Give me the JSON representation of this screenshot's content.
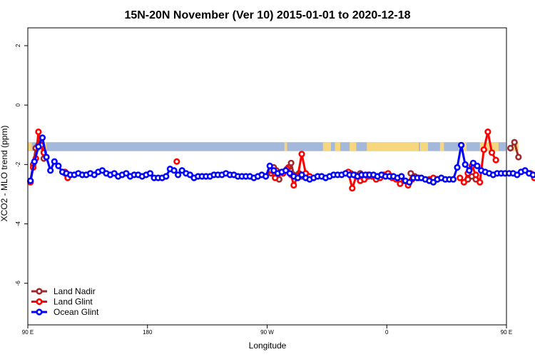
{
  "chart_data": {
    "type": "line",
    "title": "15N-20N November (Ver 10)   2015-01-01 to 2020-12-18",
    "xlabel": "Longitude",
    "ylabel": "XCO2 - MLO trend (ppm)",
    "xlim": [
      90,
      450
    ],
    "ylim": [
      -7.4,
      2.6
    ],
    "x_ticks": [
      {
        "value": 90,
        "label": "90 E"
      },
      {
        "value": 180,
        "label": "180"
      },
      {
        "value": 270,
        "label": "90 W"
      },
      {
        "value": 360,
        "label": "0"
      },
      {
        "value": 450,
        "label": "90 E"
      },
      {
        "value": 540,
        "label": "180"
      }
    ],
    "y_ticks": [
      {
        "value": 2,
        "label": "2"
      },
      {
        "value": 0,
        "label": "0"
      },
      {
        "value": -2,
        "label": "-2"
      },
      {
        "value": -4,
        "label": "-4"
      },
      {
        "value": -6,
        "label": "-6"
      }
    ],
    "legend_position": "bottom-left",
    "map_band": {
      "ymin": -1.55,
      "ymax": -1.25,
      "ocean_color": "#a4b8dc",
      "land_color": "#f7d77e"
    },
    "series": [
      {
        "name": "Land Nadir",
        "color": "#a0282d",
        "segments": [
          [
            [
              92,
              -2.55
            ],
            [
              94,
              -2.0
            ],
            [
              96,
              -1.45
            ],
            [
              98,
              -1.35
            ],
            [
              100,
              -1.25
            ],
            [
              102,
              -1.8
            ]
          ],
          [
            [
              118,
              -2.3
            ],
            [
              120,
              -2.4
            ]
          ],
          [
            [
              273,
              -2.3
            ],
            [
              275,
              -2.1
            ],
            [
              277,
              -2.2
            ],
            [
              279,
              -2.5
            ]
          ],
          [
            [
              286,
              -2.1
            ],
            [
              288,
              -1.95
            ],
            [
              290,
              -2.35
            ],
            [
              292,
              -2.4
            ],
            [
              294,
              -2.3
            ],
            [
              296,
              -2.4
            ]
          ],
          [
            [
              333,
              -2.3
            ],
            [
              336,
              -2.35
            ]
          ],
          [
            [
              340,
              -2.3
            ],
            [
              343,
              -2.4
            ],
            [
              346,
              -2.4
            ]
          ],
          [
            [
              361,
              -2.35
            ],
            [
              364,
              -2.4
            ]
          ],
          [
            [
              378,
              -2.3
            ],
            [
              381,
              -2.4
            ],
            [
              384,
              -2.45
            ]
          ],
          [
            [
              392,
              -2.5
            ],
            [
              395,
              -2.5
            ]
          ],
          [
            [
              421,
              -2.5
            ],
            [
              424,
              -2.4
            ],
            [
              427,
              -2.5
            ]
          ],
          [
            [
              453,
              -1.45
            ],
            [
              456,
              -1.25
            ],
            [
              459,
              -1.75
            ]
          ],
          [
            [
              468,
              -2.3
            ],
            [
              471,
              -2.4
            ]
          ]
        ]
      },
      {
        "name": "Land Glint",
        "color": "#ff0000",
        "segments": [
          [
            [
              92,
              -2.6
            ],
            [
              94,
              -2.1
            ],
            [
              96,
              -1.8
            ],
            [
              98,
              -0.9
            ],
            [
              100,
              -1.35
            ],
            [
              102,
              -1.6
            ]
          ],
          [
            [
              118,
              -2.25
            ],
            [
              120,
              -2.45
            ]
          ],
          [
            [
              202,
              -1.9
            ]
          ],
          [
            [
              273,
              -2.2
            ],
            [
              276,
              -2.45
            ],
            [
              279,
              -2.3
            ],
            [
              282,
              -2.3
            ],
            [
              285,
              -2.15
            ],
            [
              288,
              -2.35
            ],
            [
              290,
              -2.7
            ],
            [
              293,
              -2.4
            ],
            [
              296,
              -1.65
            ],
            [
              299,
              -2.3
            ],
            [
              302,
              -2.4
            ]
          ],
          [
            [
              331,
              -2.25
            ],
            [
              334,
              -2.8
            ],
            [
              337,
              -2.4
            ],
            [
              340,
              -2.55
            ],
            [
              343,
              -2.5
            ],
            [
              346,
              -2.35
            ],
            [
              349,
              -2.4
            ],
            [
              352,
              -2.5
            ],
            [
              355,
              -2.45
            ],
            [
              358,
              -2.35
            ],
            [
              361,
              -2.3
            ],
            [
              364,
              -2.45
            ],
            [
              367,
              -2.5
            ],
            [
              370,
              -2.65
            ],
            [
              373,
              -2.55
            ],
            [
              376,
              -2.7
            ],
            [
              379,
              -2.5
            ]
          ],
          [
            [
              392,
              -2.5
            ],
            [
              395,
              -2.45
            ],
            [
              398,
              -2.5
            ]
          ],
          [
            [
              415,
              -2.45
            ],
            [
              418,
              -2.6
            ],
            [
              421,
              -2.3
            ],
            [
              424,
              -2.05
            ],
            [
              427,
              -2.35
            ],
            [
              430,
              -2.6
            ],
            [
              433,
              -1.5
            ],
            [
              436,
              -0.9
            ],
            [
              439,
              -1.6
            ],
            [
              442,
              -1.85
            ]
          ],
          [
            [
              468,
              -2.3
            ],
            [
              471,
              -2.45
            ]
          ]
        ]
      },
      {
        "name": "Ocean Glint",
        "color": "#0000ff",
        "segments": [
          [
            [
              92,
              -2.55
            ],
            [
              95,
              -1.9
            ],
            [
              98,
              -1.4
            ],
            [
              101,
              -1.1
            ],
            [
              104,
              -1.75
            ],
            [
              107,
              -2.2
            ],
            [
              110,
              -1.9
            ],
            [
              113,
              -2.05
            ],
            [
              116,
              -2.25
            ],
            [
              119,
              -2.3
            ],
            [
              122,
              -2.35
            ],
            [
              125,
              -2.35
            ],
            [
              128,
              -2.3
            ],
            [
              131,
              -2.35
            ],
            [
              134,
              -2.35
            ],
            [
              137,
              -2.3
            ],
            [
              140,
              -2.35
            ],
            [
              143,
              -2.25
            ],
            [
              146,
              -2.2
            ],
            [
              149,
              -2.3
            ],
            [
              152,
              -2.35
            ],
            [
              155,
              -2.3
            ],
            [
              158,
              -2.4
            ],
            [
              161,
              -2.35
            ],
            [
              164,
              -2.3
            ],
            [
              167,
              -2.4
            ],
            [
              170,
              -2.35
            ],
            [
              173,
              -2.35
            ],
            [
              176,
              -2.4
            ],
            [
              179,
              -2.35
            ],
            [
              182,
              -2.3
            ],
            [
              185,
              -2.45
            ],
            [
              188,
              -2.45
            ],
            [
              191,
              -2.45
            ],
            [
              194,
              -2.4
            ],
            [
              197,
              -2.15
            ],
            [
              200,
              -2.2
            ],
            [
              203,
              -2.35
            ],
            [
              206,
              -2.2
            ],
            [
              209,
              -2.3
            ],
            [
              212,
              -2.35
            ],
            [
              215,
              -2.45
            ],
            [
              218,
              -2.4
            ],
            [
              221,
              -2.4
            ],
            [
              224,
              -2.4
            ],
            [
              227,
              -2.4
            ],
            [
              230,
              -2.35
            ],
            [
              233,
              -2.35
            ],
            [
              236,
              -2.35
            ],
            [
              239,
              -2.3
            ],
            [
              242,
              -2.35
            ],
            [
              245,
              -2.35
            ],
            [
              248,
              -2.4
            ],
            [
              251,
              -2.4
            ],
            [
              254,
              -2.4
            ],
            [
              257,
              -2.4
            ],
            [
              260,
              -2.45
            ],
            [
              263,
              -2.4
            ],
            [
              266,
              -2.35
            ],
            [
              269,
              -2.4
            ],
            [
              272,
              -2.05
            ],
            [
              275,
              -2.2
            ],
            [
              278,
              -2.3
            ],
            [
              281,
              -2.25
            ],
            [
              284,
              -2.2
            ],
            [
              287,
              -2.3
            ],
            [
              290,
              -2.4
            ],
            [
              293,
              -2.45
            ],
            [
              296,
              -2.35
            ],
            [
              299,
              -2.45
            ],
            [
              302,
              -2.5
            ],
            [
              305,
              -2.45
            ],
            [
              308,
              -2.4
            ],
            [
              311,
              -2.4
            ],
            [
              314,
              -2.45
            ],
            [
              317,
              -2.4
            ],
            [
              320,
              -2.35
            ],
            [
              323,
              -2.35
            ],
            [
              326,
              -2.35
            ],
            [
              329,
              -2.3
            ],
            [
              332,
              -2.35
            ],
            [
              335,
              -2.35
            ],
            [
              338,
              -2.4
            ],
            [
              341,
              -2.35
            ],
            [
              344,
              -2.35
            ],
            [
              347,
              -2.35
            ],
            [
              350,
              -2.35
            ],
            [
              353,
              -2.4
            ],
            [
              356,
              -2.35
            ],
            [
              359,
              -2.4
            ],
            [
              362,
              -2.4
            ],
            [
              365,
              -2.4
            ],
            [
              368,
              -2.45
            ],
            [
              371,
              -2.4
            ],
            [
              374,
              -2.55
            ],
            [
              377,
              -2.6
            ],
            [
              380,
              -2.45
            ],
            [
              383,
              -2.45
            ],
            [
              386,
              -2.45
            ],
            [
              389,
              -2.5
            ],
            [
              392,
              -2.55
            ],
            [
              395,
              -2.6
            ],
            [
              398,
              -2.5
            ],
            [
              401,
              -2.45
            ],
            [
              404,
              -2.5
            ],
            [
              407,
              -2.5
            ],
            [
              410,
              -2.5
            ],
            [
              413,
              -2.1
            ],
            [
              416,
              -1.35
            ],
            [
              419,
              -2.0
            ],
            [
              422,
              -2.2
            ],
            [
              425,
              -1.95
            ],
            [
              428,
              -2.05
            ],
            [
              431,
              -2.2
            ],
            [
              434,
              -2.25
            ],
            [
              437,
              -2.3
            ],
            [
              440,
              -2.35
            ],
            [
              443,
              -2.3
            ],
            [
              446,
              -2.3
            ],
            [
              449,
              -2.3
            ],
            [
              452,
              -2.3
            ],
            [
              455,
              -2.3
            ],
            [
              458,
              -2.35
            ],
            [
              461,
              -2.25
            ],
            [
              464,
              -2.2
            ],
            [
              467,
              -2.3
            ],
            [
              470,
              -2.35
            ]
          ]
        ]
      }
    ]
  }
}
